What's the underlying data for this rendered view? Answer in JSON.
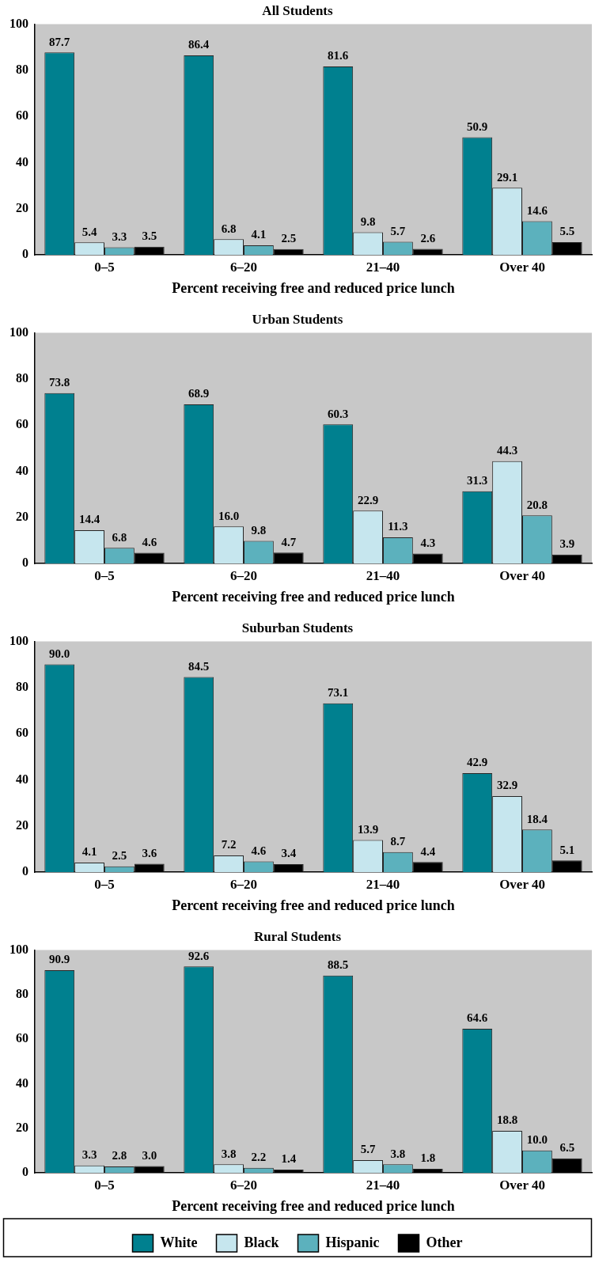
{
  "chart_data": [
    {
      "type": "bar",
      "title": "All Students",
      "xlabel": "Percent receiving free and reduced price lunch",
      "categories": [
        "0–5",
        "6–20",
        "21–40",
        "Over 40"
      ],
      "ylim": [
        0,
        100
      ],
      "yticks": [
        0,
        20,
        40,
        60,
        80,
        100
      ],
      "grid": false,
      "legend": false,
      "series": [
        {
          "color": "#00808f",
          "values": [
            87.7,
            86.4,
            81.6,
            50.9
          ],
          "value_labels": [
            "87.7",
            "86.4",
            "81.6",
            "50.9"
          ]
        },
        {
          "color": "#c6e6ee",
          "values": [
            5.4,
            6.8,
            9.8,
            29.1
          ],
          "value_labels": [
            "5.4",
            "6.8",
            "9.8",
            "29.1"
          ]
        },
        {
          "color": "#5cb1bd",
          "values": [
            3.3,
            4.1,
            5.7,
            14.6
          ],
          "value_labels": [
            "3.3",
            "4.1",
            "5.7",
            "14.6"
          ]
        },
        {
          "color": "#000000",
          "values": [
            3.5,
            2.5,
            2.6,
            5.5
          ],
          "value_labels": [
            "3.5",
            "2.5",
            "2.6",
            "5.5"
          ]
        }
      ]
    },
    {
      "type": "bar",
      "title": "Urban Students",
      "xlabel": "Percent receiving free and reduced price lunch",
      "categories": [
        "0–5",
        "6–20",
        "21–40",
        "Over 40"
      ],
      "ylim": [
        0,
        100
      ],
      "yticks": [
        0,
        20,
        40,
        60,
        80,
        100
      ],
      "grid": false,
      "legend": false,
      "series": [
        {
          "color": "#00808f",
          "values": [
            73.8,
            68.9,
            60.3,
            31.3
          ],
          "value_labels": [
            "73.8",
            "68.9",
            "60.3",
            "31.3"
          ]
        },
        {
          "color": "#c6e6ee",
          "values": [
            14.4,
            16.0,
            22.9,
            44.3
          ],
          "value_labels": [
            "14.4",
            "16.0",
            "22.9",
            "44.3"
          ]
        },
        {
          "color": "#5cb1bd",
          "values": [
            6.8,
            9.8,
            11.3,
            20.8
          ],
          "value_labels": [
            "6.8",
            "9.8",
            "11.3",
            "20.8"
          ]
        },
        {
          "color": "#000000",
          "values": [
            4.6,
            4.7,
            4.3,
            3.9
          ],
          "value_labels": [
            "4.6",
            "4.7",
            "4.3",
            "3.9"
          ]
        }
      ]
    },
    {
      "type": "bar",
      "title": "Suburban Students",
      "xlabel": "Percent receiving free and reduced price lunch",
      "categories": [
        "0–5",
        "6–20",
        "21–40",
        "Over 40"
      ],
      "ylim": [
        0,
        100
      ],
      "yticks": [
        0,
        20,
        40,
        60,
        80,
        100
      ],
      "grid": false,
      "legend": false,
      "series": [
        {
          "color": "#00808f",
          "values": [
            90.0,
            84.5,
            73.1,
            42.9
          ],
          "value_labels": [
            "90.0",
            "84.5",
            "73.1",
            "42.9"
          ]
        },
        {
          "color": "#c6e6ee",
          "values": [
            4.1,
            7.2,
            13.9,
            32.9
          ],
          "value_labels": [
            "4.1",
            "7.2",
            "13.9",
            "32.9"
          ]
        },
        {
          "color": "#5cb1bd",
          "values": [
            2.5,
            4.6,
            8.7,
            18.4
          ],
          "value_labels": [
            "2.5",
            "4.6",
            "8.7",
            "18.4"
          ]
        },
        {
          "color": "#000000",
          "values": [
            3.6,
            3.4,
            4.4,
            5.1
          ],
          "value_labels": [
            "3.6",
            "3.4",
            "4.4",
            "5.1"
          ]
        }
      ]
    },
    {
      "type": "bar",
      "title": "Rural Students",
      "xlabel": "Percent receiving free and reduced price lunch",
      "categories": [
        "0–5",
        "6–20",
        "21–40",
        "Over 40"
      ],
      "ylim": [
        0,
        100
      ],
      "yticks": [
        0,
        20,
        40,
        60,
        80,
        100
      ],
      "grid": false,
      "legend": "bottom",
      "series": [
        {
          "name": "White",
          "color": "#00808f",
          "values": [
            90.9,
            92.6,
            88.5,
            64.6
          ],
          "value_labels": [
            "90.9",
            "92.6",
            "88.5",
            "64.6"
          ]
        },
        {
          "name": "Black",
          "color": "#c6e6ee",
          "values": [
            3.3,
            3.8,
            5.7,
            18.8
          ],
          "value_labels": [
            "3.3",
            "3.8",
            "5.7",
            "18.8"
          ]
        },
        {
          "name": "Hispanic",
          "color": "#5cb1bd",
          "values": [
            2.8,
            2.2,
            3.8,
            10.0
          ],
          "value_labels": [
            "2.8",
            "2.2",
            "3.8",
            "10.0"
          ]
        },
        {
          "name": "Other",
          "color": "#000000",
          "values": [
            3.0,
            1.4,
            1.8,
            6.5
          ],
          "value_labels": [
            "3.0",
            "1.4",
            "1.8",
            "6.5"
          ]
        }
      ]
    }
  ]
}
